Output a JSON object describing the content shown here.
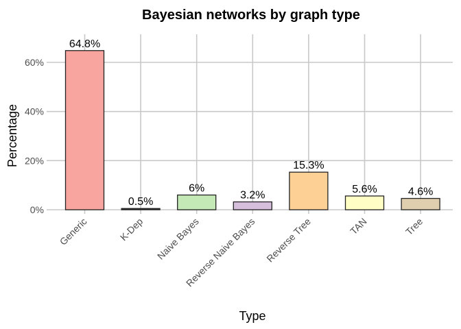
{
  "chart_data": {
    "type": "bar",
    "title": "Bayesian networks by graph type",
    "xlabel": "Type",
    "ylabel": "Percentage",
    "categories": [
      "Generic",
      "K-Dep",
      "Naive Bayes",
      "Reverse Naive Bayes",
      "Reverse Tree",
      "TAN",
      "Tree"
    ],
    "values": [
      64.8,
      0.5,
      6,
      3.2,
      15.3,
      5.6,
      4.6
    ],
    "data_labels": [
      "64.8%",
      "0.5%",
      "6%",
      "3.2%",
      "15.3%",
      "5.6%",
      "4.6%"
    ],
    "colors": [
      "#F8A5A0",
      "#2a2a2a",
      "#C5E8B7",
      "#D6BEDD",
      "#FDD195",
      "#FFFFC5",
      "#DFCFAF"
    ],
    "yticks": [
      0,
      20,
      40,
      60
    ],
    "ytick_labels": [
      "0%",
      "20%",
      "40%",
      "60%"
    ],
    "ylim": [
      0,
      72
    ],
    "grid": true,
    "legend": "none"
  }
}
